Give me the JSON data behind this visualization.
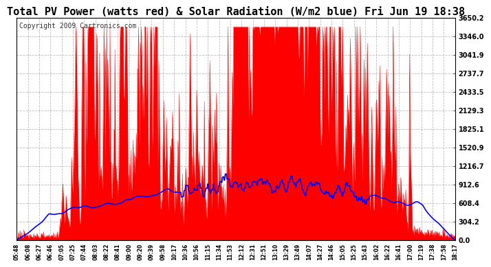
{
  "title": "Total PV Power (watts red) & Solar Radiation (W/m2 blue) Fri Jun 19 18:38",
  "copyright": "Copyright 2009 Cartronics.com",
  "bg_color": "#ffffff",
  "plot_bg_color": "#ffffff",
  "grid_color": "#aaaaaa",
  "title_color": "#000000",
  "ytick_color": "#000000",
  "xtick_color": "#000000",
  "red_color": "#ff0000",
  "blue_color": "#0000ff",
  "ymax": 3650.2,
  "ymin": 0.0,
  "yticks": [
    0.0,
    304.2,
    608.4,
    912.6,
    1216.7,
    1520.9,
    1825.1,
    2129.3,
    2433.5,
    2737.7,
    3041.9,
    3346.0,
    3650.2
  ],
  "xtick_labels": [
    "05:48",
    "06:08",
    "06:27",
    "06:46",
    "07:05",
    "07:25",
    "07:44",
    "08:03",
    "08:22",
    "08:41",
    "09:00",
    "09:20",
    "09:39",
    "09:58",
    "10:17",
    "10:36",
    "10:56",
    "11:15",
    "11:34",
    "11:53",
    "12:12",
    "12:31",
    "12:51",
    "13:10",
    "13:29",
    "13:49",
    "14:07",
    "14:27",
    "14:46",
    "15:05",
    "15:25",
    "15:43",
    "16:02",
    "16:22",
    "16:41",
    "17:00",
    "17:19",
    "17:38",
    "17:58",
    "18:17"
  ],
  "title_fontsize": 11,
  "copyright_fontsize": 7
}
